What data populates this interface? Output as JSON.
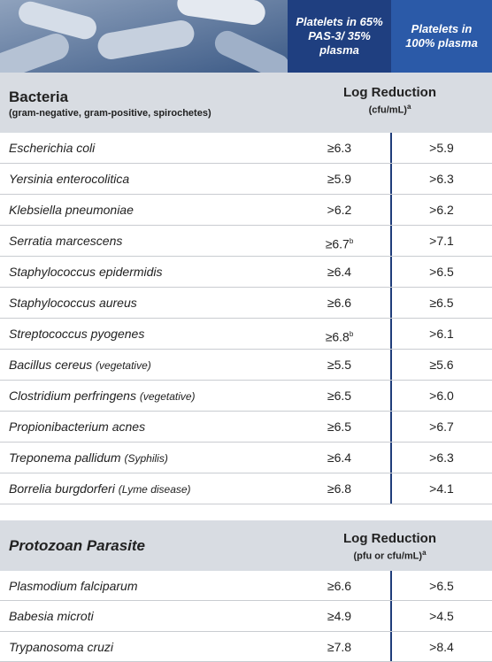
{
  "header": {
    "columns": [
      "Platelets in 65% PAS-3/ 35% plasma",
      "Platelets in 100% plasma"
    ]
  },
  "sections": [
    {
      "title": "Bacteria",
      "subtitle": "(gram-negative, gram-positive, spirochetes)",
      "measure": "Log Reduction",
      "unit": "(cfu/mL)",
      "unit_sup": "a",
      "rows": [
        {
          "organism": "Escherichia coli",
          "pas": "≥6.3",
          "plasma": ">5.9"
        },
        {
          "organism": "Yersinia enterocolitica",
          "pas": "≥5.9",
          "plasma": ">6.3"
        },
        {
          "organism": "Klebsiella pneumoniae",
          "pas": ">6.2",
          "plasma": ">6.2"
        },
        {
          "organism": "Serratia marcescens",
          "pas": "≥6.7",
          "pas_sup": "b",
          "plasma": ">7.1"
        },
        {
          "organism": "Staphylococcus epidermidis",
          "pas": "≥6.4",
          "plasma": ">6.5"
        },
        {
          "organism": "Staphylococcus aureus",
          "pas": "≥6.6",
          "plasma": "≥6.5"
        },
        {
          "organism": "Streptococcus pyogenes",
          "pas": "≥6.8",
          "pas_sup": "b",
          "plasma": ">6.1"
        },
        {
          "organism": "Bacillus cereus",
          "note": "(vegetative)",
          "pas": "≥5.5",
          "plasma": "≥5.6"
        },
        {
          "organism": "Clostridium perfringens",
          "note": "(vegetative)",
          "pas": "≥6.5",
          "plasma": ">6.0"
        },
        {
          "organism": "Propionibacterium acnes",
          "pas": "≥6.5",
          "plasma": ">6.7"
        },
        {
          "organism": "Treponema pallidum",
          "note": "(Syphilis)",
          "pas": "≥6.4",
          "plasma": ">6.3"
        },
        {
          "organism": "Borrelia burgdorferi",
          "note": "(Lyme disease)",
          "pas": "≥6.8",
          "plasma": ">4.1"
        }
      ]
    },
    {
      "title": "Protozoan Parasite",
      "measure": "Log Reduction",
      "unit": "(pfu or cfu/mL)",
      "unit_sup": "a",
      "rows": [
        {
          "organism": "Plasmodium falciparum",
          "pas": "≥6.6",
          "plasma": ">6.5"
        },
        {
          "organism": "Babesia microti",
          "pas": "≥4.9",
          "plasma": ">4.5"
        },
        {
          "organism": "Trypanosoma cruzi",
          "pas": "≥7.8",
          "plasma": ">8.4"
        }
      ]
    }
  ]
}
